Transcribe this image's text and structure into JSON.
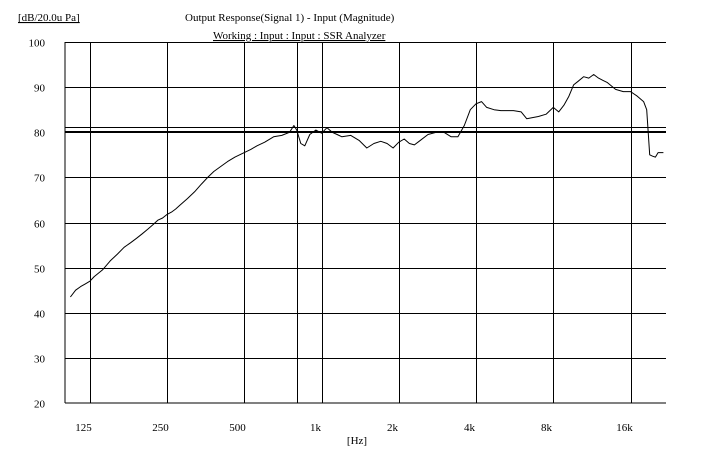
{
  "chart_data": {
    "type": "line",
    "title": "Output Response(Signal 1) - Input (Magnitude)",
    "subtitle": "Working : Input : Input : SSR Analyzer",
    "ylabel": "[dB/20.0u Pa]",
    "xlabel": "[Hz]",
    "xscale": "log",
    "xlim": [
      100,
      22000
    ],
    "ylim": [
      20,
      100
    ],
    "grid": true,
    "xticks": [
      {
        "value": 125,
        "label": "125"
      },
      {
        "value": 250,
        "label": "250"
      },
      {
        "value": 500,
        "label": "500"
      },
      {
        "value": 1000,
        "label": "1k"
      },
      {
        "value": 2000,
        "label": "2k"
      },
      {
        "value": 4000,
        "label": "4k"
      },
      {
        "value": 8000,
        "label": "8k"
      },
      {
        "value": 16000,
        "label": "16k"
      }
    ],
    "vertical_markers": [
      800
    ],
    "yticks": [
      {
        "value": 20,
        "label": "20"
      },
      {
        "value": 30,
        "label": "30"
      },
      {
        "value": 40,
        "label": "40"
      },
      {
        "value": 50,
        "label": "50"
      },
      {
        "value": 60,
        "label": "60"
      },
      {
        "value": 70,
        "label": "70"
      },
      {
        "value": 80,
        "label": "80"
      },
      {
        "value": 90,
        "label": "90"
      },
      {
        "value": 100,
        "label": "100"
      }
    ],
    "reference_lines": [
      81.2,
      80.3
    ],
    "colors": {
      "line": "#000000",
      "grid": "#000000",
      "background": "#ffffff"
    },
    "series": [
      {
        "x": [
          105,
          110,
          115,
          120,
          125,
          130,
          140,
          150,
          160,
          170,
          180,
          190,
          200,
          210,
          220,
          230,
          240,
          250,
          260,
          270,
          280,
          300,
          320,
          340,
          360,
          380,
          400,
          430,
          460,
          500,
          530,
          560,
          600,
          650,
          700,
          750,
          780,
          800,
          830,
          860,
          900,
          950,
          1000,
          1050,
          1100,
          1150,
          1200,
          1300,
          1400,
          1500,
          1600,
          1700,
          1800,
          1900,
          2000,
          2100,
          2200,
          2300,
          2400,
          2600,
          2800,
          3000,
          3200,
          3400,
          3600,
          3800,
          4000,
          4200,
          4400,
          4700,
          5000,
          5300,
          5600,
          6000,
          6300,
          6600,
          7000,
          7500,
          8000,
          8400,
          8800,
          9200,
          9600,
          10000,
          10500,
          11000,
          11500,
          12000,
          12500,
          13000,
          14000,
          15000,
          16000,
          17000,
          18000,
          18500,
          19000,
          19500,
          20000,
          20500,
          21000,
          21500
        ],
        "y": [
          43.5,
          45,
          45.8,
          46.4,
          47,
          48,
          49.5,
          51.5,
          53,
          54.5,
          55.5,
          56.5,
          57.5,
          58.5,
          59.5,
          60.5,
          61,
          61.8,
          62.3,
          63,
          63.8,
          65.3,
          66.8,
          68.5,
          70,
          71.3,
          72.2,
          73.5,
          74.5,
          75.5,
          76.2,
          77,
          77.8,
          79,
          79.3,
          80,
          81.5,
          80.5,
          77.5,
          77,
          79.5,
          80.5,
          79.8,
          81,
          80,
          79.5,
          79,
          79.3,
          78.2,
          76.5,
          77.5,
          78,
          77.5,
          76.5,
          77.8,
          78.5,
          77.5,
          77.2,
          78,
          79.5,
          80,
          80,
          79,
          79,
          81.5,
          85,
          86.3,
          86.8,
          85.5,
          85,
          84.8,
          84.8,
          84.8,
          84.5,
          83,
          83.2,
          83.5,
          84,
          85.5,
          84.5,
          86,
          88,
          90.5,
          91.3,
          92.3,
          92,
          92.8,
          92,
          91.5,
          91,
          89.5,
          89,
          89,
          88,
          86.8,
          85,
          75,
          74.7,
          74.5,
          75.5,
          75.5,
          75.5
        ]
      }
    ]
  }
}
